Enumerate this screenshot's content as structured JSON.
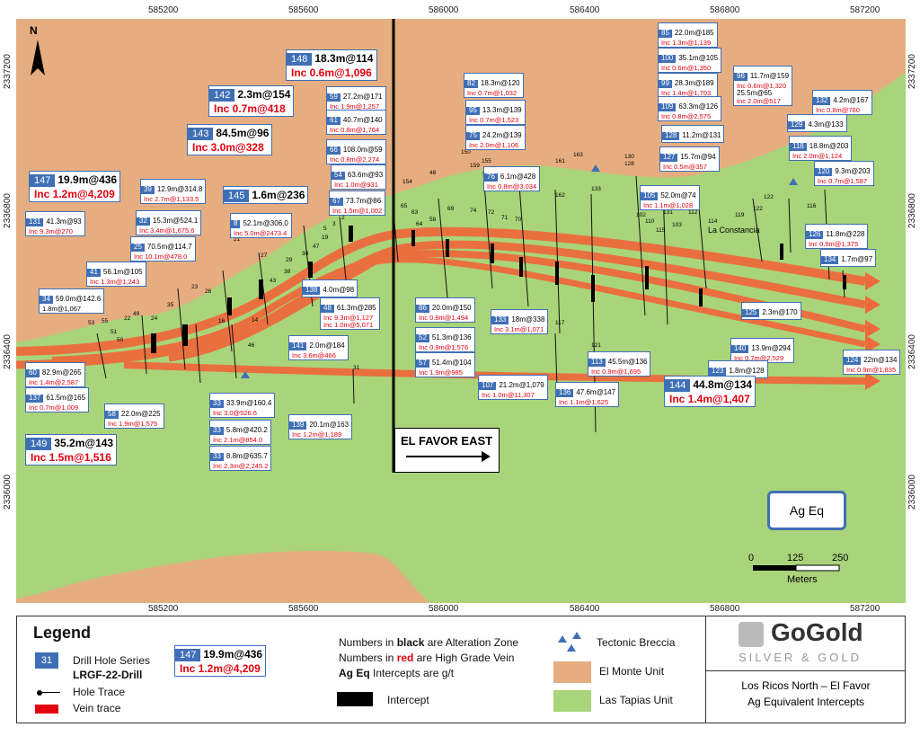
{
  "x_ticks": [
    "585200",
    "585600",
    "586000",
    "586400",
    "586800",
    "587200"
  ],
  "y_ticks": [
    "2337200",
    "2336800",
    "2336400",
    "2336000"
  ],
  "north_label": "N",
  "place_label": "La Constancia",
  "east_sign": "EL FAVOR EAST",
  "ag_eq_box": "Ag Eq",
  "scale": {
    "labels": [
      "0",
      "125",
      "250"
    ],
    "unit": "Meters"
  },
  "colors": {
    "el_monte": "#e6ae80",
    "las_tapias": "#a9d47a",
    "vein": "#ee6a3c",
    "label_blue": "#3f6fb6",
    "high_grade": "#e3000f"
  },
  "labels": [
    {
      "id": "85",
      "v": "22.0m@185",
      "inc": "Inc 1.3m@1,139"
    },
    {
      "id": "100",
      "v": "35.1m@105",
      "inc": "Inc 0.6m@1,350"
    },
    {
      "id": "96",
      "v": "11.7m@159",
      "inc": "Inc 0.6m@1,320",
      "v2": "25.5m@65",
      "inc2": "Inc 2.0m@517"
    },
    {
      "id": "99",
      "v": "28.3m@189",
      "inc": "Inc 1.4m@1,703"
    },
    {
      "id": "109",
      "v": "63.3m@126",
      "inc": "Inc 0.8m@2,575"
    },
    {
      "id": "132",
      "v": "4.2m@167",
      "inc": "Inc 0.8m@760"
    },
    {
      "id": "129",
      "v": "4.3m@133",
      "inc": ""
    },
    {
      "id": "128",
      "v": "11.2m@131",
      "inc": ""
    },
    {
      "id": "118",
      "v": "18.8m@203",
      "inc": "Inc 2.0m@1,124"
    },
    {
      "id": "127",
      "v": "15.7m@94",
      "inc": "Inc 0.5m@357"
    },
    {
      "id": "120",
      "v": "9.3m@203",
      "inc": "Inc 0.7m@1,587"
    },
    {
      "id": "105",
      "v": "52.0m@74",
      "inc": "Inc 1.1m@1,028"
    },
    {
      "id": "126",
      "v": "11.8m@228",
      "inc": "Inc 0.9m@1,375"
    },
    {
      "id": "134",
      "v": "1.7m@97",
      "inc": ""
    },
    {
      "id": "82",
      "v": "18.3m@120",
      "inc": "Inc 0.7m@1,032"
    },
    {
      "id": "95",
      "v": "13.3m@139",
      "inc": "Inc 0.7m@1,523"
    },
    {
      "id": "75",
      "v": "24.2m@139",
      "inc": "Inc 2.0m@1,106"
    },
    {
      "id": "76",
      "v": "6.1m@428",
      "inc": "Inc 0.8m@3,034"
    },
    {
      "id": "59",
      "v": "27.2m@171",
      "inc": "Inc 1.9m@1,257"
    },
    {
      "id": "61",
      "v": "40.7m@140",
      "inc": "Inc 0.8m@1,764"
    },
    {
      "id": "66",
      "v": "108.0m@59",
      "inc": "Inc 0.8m@2,274"
    },
    {
      "id": "54",
      "v": "63.6m@93",
      "inc": "Inc 1.0m@931"
    },
    {
      "id": "67",
      "v": "73.7m@86",
      "inc": "Inc 1.5m@1,002"
    },
    {
      "id": "8",
      "v": "52.1m@306.0",
      "inc": "Inc 5.0m@2473.4"
    },
    {
      "id": "39",
      "v": "12.9m@314.8",
      "inc": "Inc 2.7m@1,133.5"
    },
    {
      "id": "32",
      "v": "15.3m@524.1",
      "inc": "Inc 3.4m@1,675.6"
    },
    {
      "id": "25",
      "v": "70.5m@114.7",
      "inc": "Inc 10.1m@478.0"
    },
    {
      "id": "131",
      "v": "41.3m@93",
      "inc": "Inc 9.3m@270"
    },
    {
      "id": "41",
      "v": "56.1m@105",
      "inc": "Inc 1.3m@1,243"
    },
    {
      "id": "34",
      "v": "59.0m@142.6",
      "inc": "1.8m@1,067"
    },
    {
      "id": "138",
      "v": "4.0m@98",
      "inc": ""
    },
    {
      "id": "48",
      "v": "61.3m@285",
      "inc": "Inc 9.3m@1,127",
      "inc2": "Inc 1.0m@5,071"
    },
    {
      "id": "86",
      "v": "20.0m@150",
      "inc": "Inc 0.9m@1,494"
    },
    {
      "id": "133",
      "v": "18m@338",
      "inc": "Inc 3.1m@1,071"
    },
    {
      "id": "52",
      "v": "51.3m@136",
      "inc": "Inc 0.9m@1,576"
    },
    {
      "id": "57",
      "v": "51.4m@104",
      "inc": "Inc 1.9m@985"
    },
    {
      "id": "141",
      "v": "2.0m@184",
      "inc": "Inc 3.6m@466"
    },
    {
      "id": "60",
      "v": "82.9m@265",
      "inc": "Inc 1.4m@2,587"
    },
    {
      "id": "137",
      "v": "61.5m@165",
      "inc": "Inc 0.7m@1,009"
    },
    {
      "id": "58",
      "v": "22.0m@225",
      "inc": "Inc 1.9m@1,575"
    },
    {
      "id": "33",
      "v": "33.9m@160.4",
      "inc": "Inc 3.0@526.6"
    },
    {
      "id": "33",
      "v": "5.8m@420.2",
      "inc": "Inc 2.1m@854.0"
    },
    {
      "id": "33",
      "v": "8.8m@635.7",
      "inc": "Inc 2.3m@2,245.2"
    },
    {
      "id": "139",
      "v": "20.1m@163",
      "inc": "Inc 1.2m@1,189"
    },
    {
      "id": "107",
      "v": "21.2m@1,079",
      "inc": "Inc 1.0m@11,307"
    },
    {
      "id": "136",
      "v": "47.6m@147",
      "inc": "Inc 1.1m@1,625"
    },
    {
      "id": "113",
      "v": "45.5m@136",
      "inc": "Inc 0.9m@1,695"
    },
    {
      "id": "125",
      "v": "2.3m@170",
      "inc": ""
    },
    {
      "id": "140",
      "v": "13.9m@294",
      "inc": "Inc 0.7m@2,529"
    },
    {
      "id": "123",
      "v": "1.8m@128",
      "inc": ""
    },
    {
      "id": "124",
      "v": "22m@134",
      "inc": "Inc 0.9m@1,835"
    }
  ],
  "big_labels": [
    {
      "id": "148",
      "v": "18.3m@114",
      "inc": "Inc 0.6m@1,096"
    },
    {
      "id": "142",
      "v": "2.3m@154",
      "inc": "Inc 0.7m@418"
    },
    {
      "id": "143",
      "v": "84.5m@96",
      "inc": "Inc 3.0m@328"
    },
    {
      "id": "147",
      "v": "19.9m@436",
      "inc": "Inc 1.2m@4,209"
    },
    {
      "id": "145",
      "v": "1.6m@236",
      "inc": ""
    },
    {
      "id": "149",
      "v": "35.2m@143",
      "inc": "Inc 1.5m@1,516"
    },
    {
      "id": "144",
      "v": "44.8m@134",
      "inc": "Inc 1.4m@1,407"
    }
  ],
  "holes": [
    "53",
    "55",
    "49",
    "22",
    "51",
    "50",
    "24",
    "35",
    "16",
    "26",
    "21",
    "27",
    "29",
    "43",
    "38",
    "30",
    "47",
    "19",
    "14",
    "3",
    "2",
    "1",
    "5",
    "46",
    "23",
    "31",
    "48",
    "154",
    "121",
    "117",
    "150",
    "155",
    "161",
    "163",
    "162",
    "159",
    "130",
    "128",
    "133",
    "102",
    "131",
    "112",
    "114",
    "119",
    "122",
    "116",
    "110",
    "115",
    "103",
    "122",
    "69",
    "58",
    "74",
    "72",
    "71",
    "70",
    "63",
    "64",
    "65"
  ],
  "legend": {
    "title": "Legend",
    "drill_series_num": "31",
    "drill_series": "Drill Hole Series",
    "drill_prefix": "LRGF-22-Drill",
    "hole_trace": "Hole Trace",
    "vein_trace": "Vein trace",
    "sample": {
      "id": "147",
      "v": "19.9m@436",
      "inc": "Inc 1.2m@4,209"
    },
    "note_black_pre": "Numbers in ",
    "note_black_word": "black",
    "note_black_post": " are Alteration Zone",
    "note_red_pre": "Numbers in ",
    "note_red_word": "red",
    "note_red_post": " are High Grade Vein",
    "note_ag_bold": "Ag Eq",
    "note_ag_post": " Intercepts are g/t",
    "intercept": "Intercept",
    "breccia": "Tectonic Breccia",
    "el_monte": "El Monte Unit",
    "las_tapias": "Las Tapias Unit",
    "company": "GoGold",
    "company_sub": "SILVER & GOLD",
    "report_line1": "Los Ricos North – El Favor",
    "report_line2": "Ag Equivalent Intercepts"
  }
}
